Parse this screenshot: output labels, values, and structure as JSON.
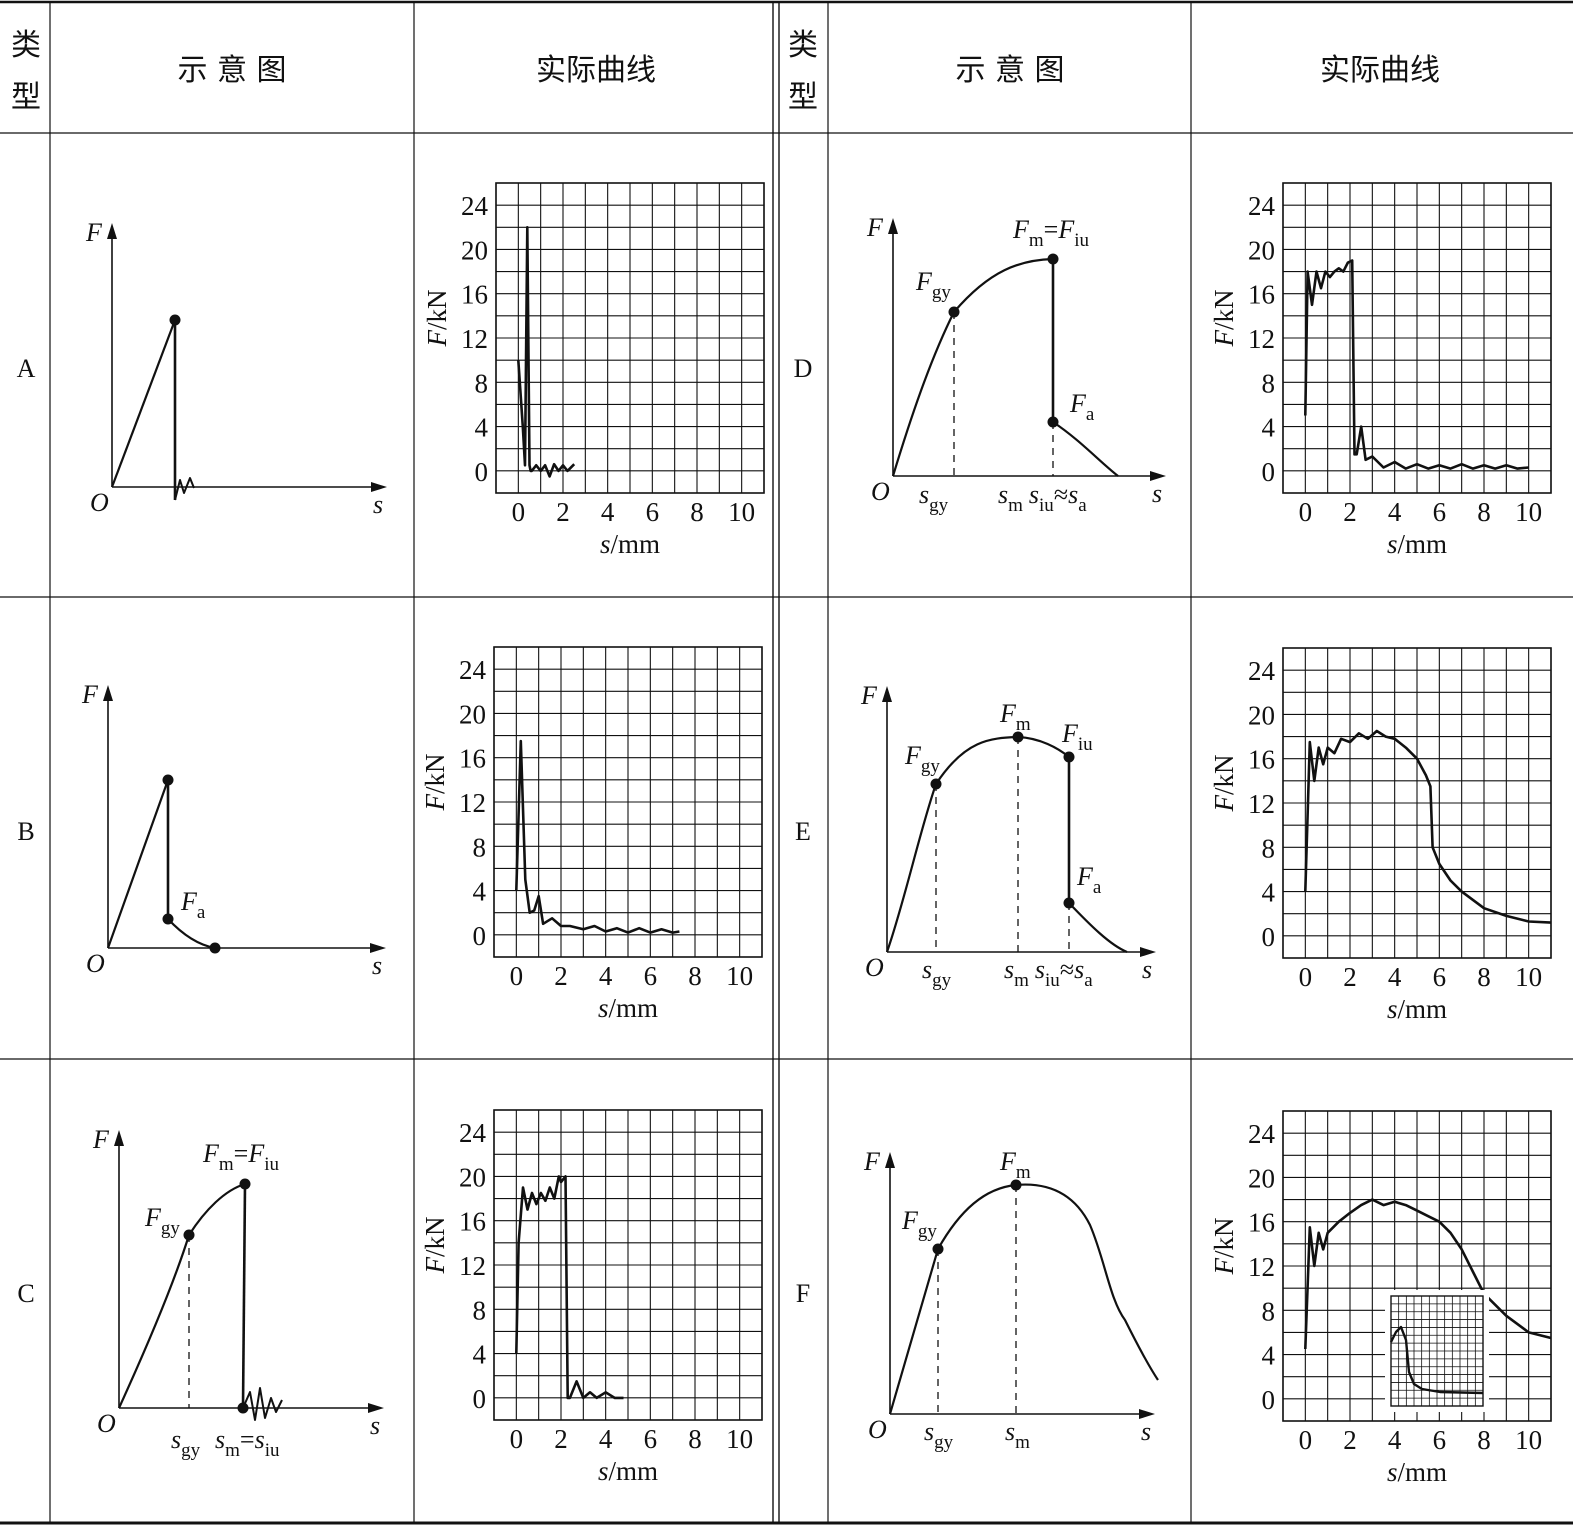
{
  "headers": {
    "type": "类型",
    "sketch": "示 意 图",
    "actual": "实际曲线"
  },
  "row_labels": [
    "A",
    "B",
    "C",
    "D",
    "E",
    "F"
  ],
  "sketch_labels": {
    "axis_y": "F",
    "axis_x": "s",
    "origin": "O",
    "F": "F",
    "s": "s",
    "sub_gy": "gy",
    "sub_m": "m",
    "sub_iu": "iu",
    "sub_a": "a",
    "eq": "=",
    "approx": "≈"
  },
  "axis_labels": {
    "x_var": "s",
    "x_unit": "/mm",
    "y_var": "F",
    "y_unit": "/kN"
  },
  "chart_data": [
    {
      "id": "A",
      "type": "line",
      "xlabel": "s/mm",
      "ylabel": "F/kN",
      "xticks": [
        0,
        2,
        4,
        6,
        8,
        10
      ],
      "yticks": [
        0,
        4,
        8,
        12,
        16,
        20,
        24
      ],
      "xlim": [
        -1,
        11
      ],
      "ylim": [
        -2,
        26
      ],
      "grid": true,
      "series": [
        {
          "x": [
            0,
            0.2,
            0.3,
            0.4,
            0.5,
            0.55,
            0.6,
            0.8,
            1.0,
            1.2,
            1.4,
            1.6,
            1.8,
            2.0,
            2.2,
            2.5
          ],
          "y": [
            10,
            4,
            0.5,
            22,
            0.5,
            0,
            0,
            0.5,
            0,
            0.5,
            -0.5,
            0.6,
            0,
            0.5,
            0,
            0.6
          ]
        }
      ]
    },
    {
      "id": "B",
      "type": "line",
      "xlabel": "s/mm",
      "ylabel": "F/kN",
      "xticks": [
        0,
        2,
        4,
        6,
        8,
        10
      ],
      "yticks": [
        0,
        4,
        8,
        12,
        16,
        20,
        24
      ],
      "xlim": [
        -1,
        11
      ],
      "ylim": [
        -2,
        26
      ],
      "grid": true,
      "series": [
        {
          "x": [
            0,
            0.2,
            0.4,
            0.6,
            0.8,
            1.0,
            1.2,
            1.6,
            2.0,
            2.4,
            3.0,
            3.5,
            4.0,
            4.5,
            5.0,
            5.5,
            6.0,
            6.5,
            7.0,
            7.3
          ],
          "y": [
            4,
            17.5,
            5,
            2,
            2.2,
            3.5,
            1,
            1.5,
            0.8,
            0.8,
            0.5,
            0.8,
            0.3,
            0.6,
            0.2,
            0.6,
            0.2,
            0.5,
            0.2,
            0.3
          ]
        }
      ]
    },
    {
      "id": "C",
      "type": "line",
      "xlabel": "s/mm",
      "ylabel": "F/kN",
      "xticks": [
        0,
        2,
        4,
        6,
        8,
        10
      ],
      "yticks": [
        0,
        4,
        8,
        12,
        16,
        20,
        24
      ],
      "xlim": [
        -1,
        11
      ],
      "ylim": [
        -2,
        26
      ],
      "grid": true,
      "series": [
        {
          "x": [
            0,
            0.1,
            0.3,
            0.5,
            0.7,
            0.9,
            1.1,
            1.3,
            1.5,
            1.7,
            1.9,
            2.0,
            2.2,
            2.3,
            2.4,
            2.7,
            3.0,
            3.3,
            3.6,
            4.0,
            4.4,
            4.8
          ],
          "y": [
            4,
            14,
            19,
            17,
            18.5,
            17.5,
            18.5,
            17.8,
            19,
            18,
            20,
            19.5,
            20,
            0,
            0,
            1.5,
            0,
            0.5,
            0,
            0.5,
            0,
            0
          ]
        }
      ]
    },
    {
      "id": "D",
      "type": "line",
      "xlabel": "s/mm",
      "ylabel": "F/kN",
      "xticks": [
        0,
        2,
        4,
        6,
        8,
        10
      ],
      "yticks": [
        0,
        4,
        8,
        12,
        16,
        20,
        24
      ],
      "xlim": [
        -1,
        11
      ],
      "ylim": [
        -2,
        26
      ],
      "grid": true,
      "series": [
        {
          "x": [
            0,
            0.1,
            0.3,
            0.5,
            0.7,
            0.9,
            1.1,
            1.3,
            1.5,
            1.7,
            1.9,
            2.1,
            2.2,
            2.3,
            2.5,
            2.7,
            3.0,
            3.5,
            4.0,
            4.5,
            5.0,
            5.5,
            6.0,
            6.5,
            7.0,
            7.5,
            8.0,
            8.5,
            9.0,
            9.5,
            10.0
          ],
          "y": [
            5,
            18,
            15,
            18,
            16.5,
            18,
            17.5,
            18,
            18.3,
            18,
            18.8,
            19,
            1.5,
            1.5,
            4,
            1,
            1.3,
            0.3,
            0.8,
            0.2,
            0.6,
            0.2,
            0.5,
            0.2,
            0.6,
            0.2,
            0.5,
            0.2,
            0.5,
            0.2,
            0.3
          ]
        }
      ]
    },
    {
      "id": "E",
      "type": "line",
      "xlabel": "s/mm",
      "ylabel": "F/kN",
      "xticks": [
        0,
        2,
        4,
        6,
        8,
        10
      ],
      "yticks": [
        0,
        4,
        8,
        12,
        16,
        20,
        24
      ],
      "xlim": [
        -1,
        11
      ],
      "ylim": [
        -2,
        26
      ],
      "grid": true,
      "series": [
        {
          "x": [
            0,
            0.2,
            0.4,
            0.6,
            0.8,
            1.0,
            1.3,
            1.6,
            2.0,
            2.4,
            2.8,
            3.2,
            3.6,
            4.0,
            4.5,
            5.0,
            5.4,
            5.6,
            5.7,
            6.0,
            6.5,
            7.0,
            8.0,
            9.0,
            10.0,
            11.0
          ],
          "y": [
            4,
            17.5,
            14,
            17,
            15.5,
            17,
            16.5,
            17.8,
            17.5,
            18.3,
            17.8,
            18.5,
            18,
            17.8,
            17,
            16,
            14.5,
            13.5,
            8,
            6.5,
            5,
            4,
            2.5,
            1.8,
            1.3,
            1.2
          ]
        }
      ]
    },
    {
      "id": "F",
      "type": "line",
      "xlabel": "s/mm",
      "ylabel": "F/kN",
      "xticks": [
        0,
        2,
        4,
        6,
        8,
        10
      ],
      "yticks": [
        0,
        4,
        8,
        12,
        16,
        20,
        24
      ],
      "xlim": [
        -1,
        11
      ],
      "ylim": [
        -2,
        26
      ],
      "grid": true,
      "series": [
        {
          "x": [
            0,
            0.2,
            0.4,
            0.6,
            0.8,
            1.0,
            1.5,
            2.0,
            2.5,
            3.0,
            3.5,
            4.0,
            4.5,
            5.0,
            5.5,
            6.0,
            6.5,
            7.0,
            7.5,
            8.0,
            9.0,
            10.0,
            11.0
          ],
          "y": [
            4.5,
            15.5,
            12,
            15,
            13.5,
            15,
            16,
            16.8,
            17.5,
            18,
            17.5,
            17.8,
            17.5,
            17,
            16.5,
            16,
            15,
            13.5,
            11.5,
            9.5,
            7.5,
            6,
            5.5
          ]
        }
      ]
    }
  ]
}
